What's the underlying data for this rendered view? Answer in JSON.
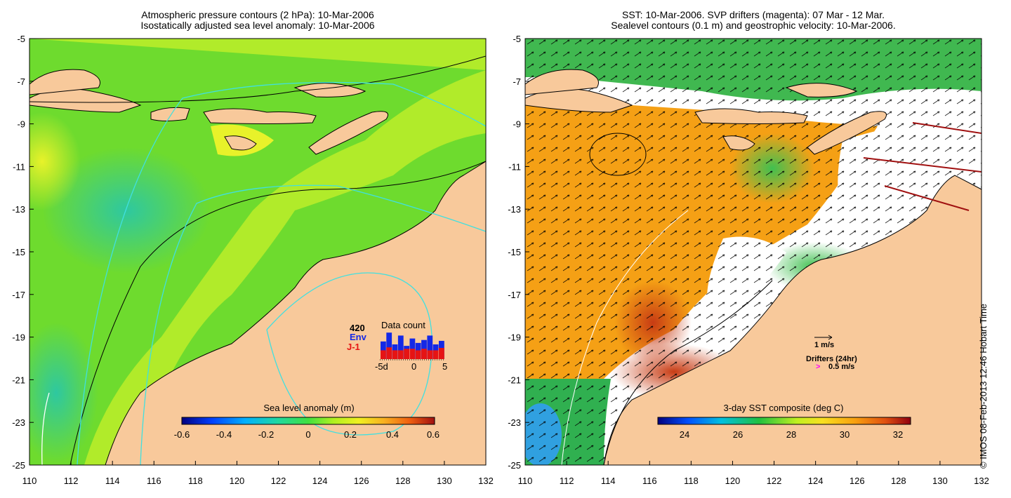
{
  "left_panel": {
    "title_line1": "Atmospheric pressure contours (2 hPa): 10-Mar-2006",
    "title_line2": "Isostatically adjusted sea level anomaly: 10-Mar-2006",
    "colorbar_title": "Sea level anomaly (m)",
    "colorbar_ticks": [
      "-0.6",
      "-0.4",
      "-0.2",
      "0",
      "0.2",
      "0.4",
      "0.6"
    ],
    "data_count": {
      "title": "Data count",
      "total": "420",
      "env_label": "Env",
      "j1_label": "J-1",
      "axis_labels": [
        "-5d",
        "0",
        "5"
      ],
      "env_fraction": [
        0.6,
        0.9,
        0.5,
        0.8,
        0.45,
        0.7,
        0.55,
        0.65,
        0.8,
        0.5,
        0.62
      ],
      "j1_fraction": [
        0.3,
        0.4,
        0.3,
        0.3,
        0.35,
        0.35,
        0.3,
        0.35,
        0.3,
        0.3,
        0.38
      ]
    }
  },
  "right_panel": {
    "title_line1": "SST: 10-Mar-2006. SVP drifters (magenta): 07 Mar - 12 Mar.",
    "title_line2": "Sealevel contours (0.1 m) and geostrophic velocity: 10-Mar-2006.",
    "colorbar_title": "3-day SST composite (deg C)",
    "colorbar_ticks": [
      "24",
      "26",
      "28",
      "30",
      "32"
    ],
    "velocity_legend": "1 m/s",
    "drifter_legend_title": "Drifters (24hr)",
    "drifter_legend_speed": "0.5 m/s",
    "drifter_symbol": ">"
  },
  "axes": {
    "x_ticks": [
      "110",
      "112",
      "114",
      "116",
      "118",
      "120",
      "122",
      "124",
      "126",
      "128",
      "130",
      "132"
    ],
    "y_ticks": [
      "-5",
      "-7",
      "-9",
      "-11",
      "-13",
      "-15",
      "-17",
      "-19",
      "-21",
      "-23",
      "-25"
    ]
  },
  "credit": "© IMOS 08-Feb-2013 12:46 Hobart Time",
  "colors": {
    "land": "#f8c99b",
    "sla_green": "#6edb2e",
    "sla_yellow": "#c8f02a",
    "sla_teal": "#2ec88c",
    "sst_orange": "#f5a015",
    "sst_red": "#c83c14",
    "cyan_contour": "#40e0e0",
    "env_bar": "#1428e6",
    "j1_bar": "#e61414",
    "drifter": "#ff00ff"
  }
}
